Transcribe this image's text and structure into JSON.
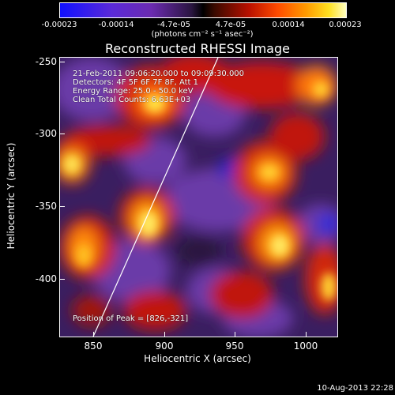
{
  "colorbar": {
    "ticks": [
      "-0.00023",
      "-0.00014",
      "-4.7e-05",
      "4.7e-05",
      "0.00014",
      "0.00023"
    ],
    "units": "(photons cm⁻² s⁻¹ asec⁻²)"
  },
  "plot": {
    "title": "Reconstructed RHESSI Image",
    "info": [
      "21-Feb-2011 09:06:20.000 to 09:09:30.000",
      "Detectors: 4F 5F 6F 7F 8F, Att 1",
      "Energy Range: 25.0 - 50.0 keV",
      "Clean    Total Counts: 6.63E+03"
    ],
    "peak": "Position of Peak = [826,-321]",
    "xlabel": "Heliocentric X (arcsec)",
    "ylabel": "Heliocentric Y (arcsec)",
    "xticks": [
      "850",
      "900",
      "950",
      "1000"
    ],
    "yticks": [
      "-250",
      "-300",
      "-350",
      "-400"
    ]
  },
  "timestamp": "10-Aug-2013 22:28"
}
